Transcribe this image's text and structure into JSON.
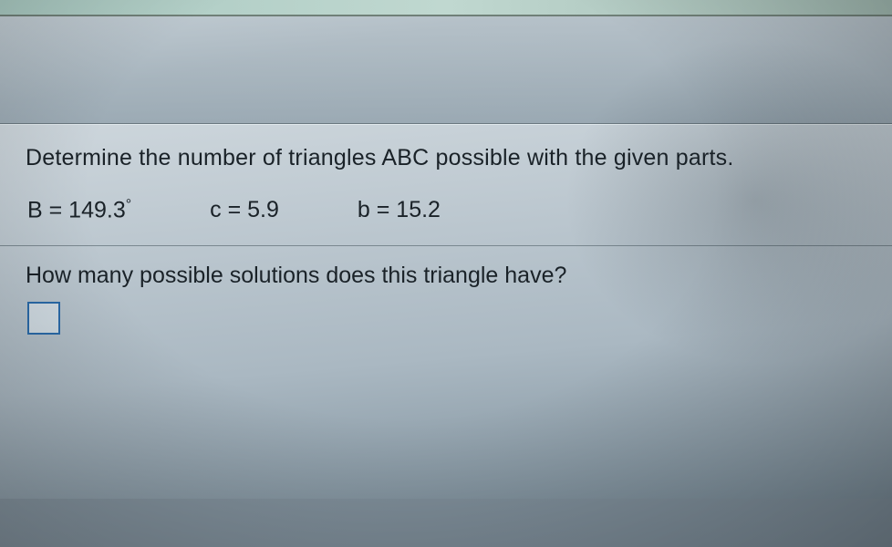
{
  "question": {
    "prompt": "Determine the number of triangles ABC possible with the given parts.",
    "given": {
      "B_label": "B = 149.3",
      "B_degree": "°",
      "c_label": "c = 5.9",
      "b_label": "b = 15.2"
    },
    "sub_prompt": "How many possible solutions does this triangle have?",
    "answer_value": ""
  },
  "style": {
    "text_color": "#1a2228",
    "box_border_color": "#2a6aa8",
    "font_size_pt": 25,
    "background_gradient_top": "#cdd6dc",
    "background_gradient_bottom": "#7a8c98"
  }
}
